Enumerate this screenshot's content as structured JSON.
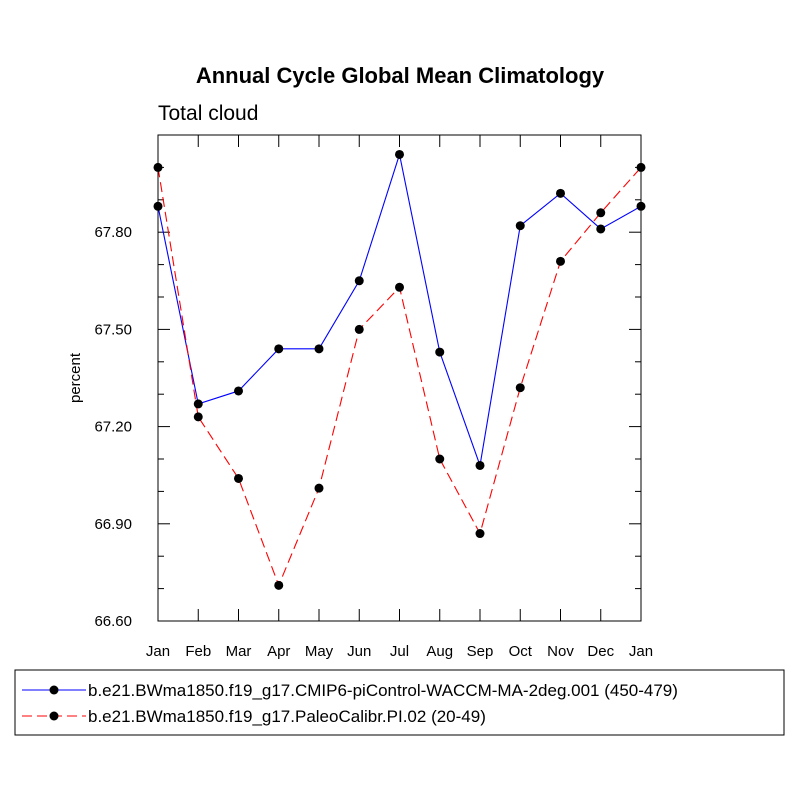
{
  "chart_data": {
    "type": "line",
    "title": "Annual Cycle Global Mean Climatology",
    "subtitle": "Total cloud",
    "xlabel": "",
    "ylabel": "percent",
    "categories": [
      "Jan",
      "Feb",
      "Mar",
      "Apr",
      "May",
      "Jun",
      "Jul",
      "Aug",
      "Sep",
      "Oct",
      "Nov",
      "Dec",
      "Jan"
    ],
    "ylim": [
      66.6,
      68.1
    ],
    "yticks": [
      66.6,
      66.9,
      67.2,
      67.5,
      67.8
    ],
    "ytick_labels": [
      "66.60",
      "66.90",
      "67.20",
      "67.50",
      "67.80"
    ],
    "series": [
      {
        "name": "b.e21.BWma1850.f19_g17.CMIP6-piControl-WACCM-MA-2deg.001 (450-479)",
        "color": "#0000ff",
        "dash": "solid",
        "values": [
          67.88,
          67.27,
          67.31,
          67.44,
          67.44,
          67.65,
          68.04,
          67.43,
          67.08,
          67.82,
          67.92,
          67.81,
          67.88
        ]
      },
      {
        "name": "b.e21.BWma1850.f19_g17.PaleoCalibr.PI.02 (20-49)",
        "color": "#ff0000",
        "dash": "dashed",
        "values": [
          68.0,
          67.23,
          67.04,
          66.71,
          67.01,
          67.5,
          67.63,
          67.1,
          66.87,
          67.32,
          67.71,
          67.86,
          68.0
        ]
      }
    ],
    "legend_position": "bottom"
  }
}
